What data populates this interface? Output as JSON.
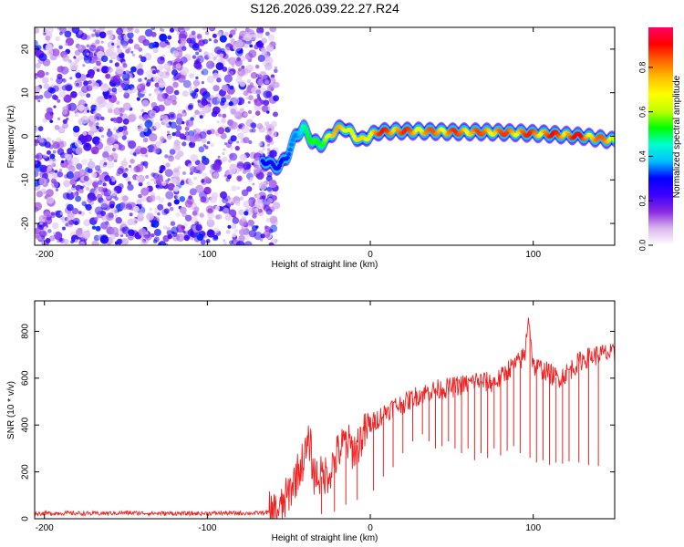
{
  "figure_title": "S126.2026.039.22.27.R24",
  "chart_data": [
    {
      "type": "heatmap",
      "title": "S126.2026.039.22.27.R24",
      "xlabel": "Height of straight line (km)",
      "ylabel": "Frequency (Hz)",
      "xlim": [
        -206,
        150
      ],
      "ylim": [
        -25,
        25
      ],
      "xticks": [
        -200,
        -100,
        0,
        100
      ],
      "yticks": [
        -20,
        -10,
        0,
        10,
        20
      ],
      "colorbar": {
        "label": "Normalized spectral amplitude",
        "range": [
          0,
          0.98
        ],
        "ticks": [
          "0.0",
          "0.2",
          "0.4",
          "0.6",
          "0.8"
        ],
        "tick_values": [
          0,
          0.2,
          0.4,
          0.6,
          0.8
        ],
        "colormap": [
          "#ffffff",
          "#d9b8ee",
          "#8a2be2",
          "#3b00ff",
          "#0000ff",
          "#00bfff",
          "#00ffd0",
          "#00ff00",
          "#bfff00",
          "#ffff00",
          "#ffbf00",
          "#ff6600",
          "#ff0000",
          "#ff0066"
        ]
      },
      "noise_region_x": [
        -206,
        -62
      ],
      "signal_ridge": {
        "x": [
          -66,
          -61,
          -56,
          -51,
          -46,
          -41,
          -36,
          -31,
          -26,
          -21,
          -16,
          -11,
          -6,
          -1,
          5,
          15,
          30,
          50,
          70,
          90,
          110,
          130,
          150
        ],
        "frequency_hz": [
          -5.5,
          -6.5,
          -7,
          -4.5,
          0,
          2,
          -1,
          -2,
          -0.5,
          1.5,
          2,
          0.5,
          -1,
          0,
          1,
          1.2,
          1.2,
          1,
          1,
          0.8,
          0.5,
          0,
          -1
        ],
        "amplitude": [
          0.3,
          0.35,
          0.3,
          0.32,
          0.45,
          0.5,
          0.55,
          0.65,
          0.7,
          0.8,
          0.9,
          0.7,
          0.75,
          0.85,
          0.9,
          0.95,
          0.85,
          0.9,
          0.88,
          0.9,
          0.92,
          0.95,
          0.8
        ]
      }
    },
    {
      "type": "line",
      "xlabel": "Height of straight line (km)",
      "ylabel": "SNR (10 * v/v)",
      "xlim": [
        -206,
        150
      ],
      "ylim": [
        0,
        930
      ],
      "xticks": [
        -200,
        -100,
        0,
        100
      ],
      "yticks": [
        0,
        200,
        400,
        600,
        800
      ],
      "series": [
        {
          "name": "SNR",
          "color": "#ee2222",
          "x": [
            -206,
            -190,
            -170,
            -150,
            -130,
            -110,
            -90,
            -70,
            -60,
            -55,
            -50,
            -45,
            -40,
            -37,
            -35,
            -30,
            -25,
            -20,
            -15,
            -10,
            -5,
            0,
            5,
            10,
            15,
            20,
            25,
            30,
            35,
            40,
            45,
            50,
            55,
            60,
            65,
            70,
            75,
            80,
            85,
            90,
            95,
            97,
            100,
            105,
            110,
            115,
            120,
            125,
            130,
            135,
            140,
            145,
            150
          ],
          "y": [
            22,
            24,
            22,
            25,
            23,
            22,
            24,
            24,
            28,
            40,
            110,
            190,
            270,
            330,
            190,
            180,
            200,
            280,
            330,
            290,
            350,
            400,
            430,
            460,
            480,
            490,
            510,
            530,
            540,
            550,
            555,
            560,
            570,
            575,
            590,
            585,
            580,
            600,
            640,
            660,
            700,
            880,
            650,
            640,
            620,
            600,
            620,
            650,
            680,
            690,
            700,
            705,
            700
          ]
        }
      ],
      "dropouts": {
        "x": [
          -30,
          -22,
          -15,
          -8,
          2,
          8,
          14,
          20,
          26,
          32,
          36,
          40,
          44,
          48,
          52,
          56,
          60,
          64,
          68,
          72,
          76,
          80,
          84,
          88,
          92,
          98,
          102,
          106,
          110,
          114,
          118,
          122,
          128,
          134,
          140
        ],
        "y": [
          20,
          30,
          60,
          80,
          120,
          180,
          220,
          280,
          330,
          360,
          330,
          300,
          310,
          330,
          300,
          280,
          300,
          250,
          280,
          260,
          300,
          270,
          290,
          310,
          280,
          260,
          240,
          250,
          230,
          240,
          235,
          245,
          240,
          230,
          225
        ]
      }
    }
  ]
}
